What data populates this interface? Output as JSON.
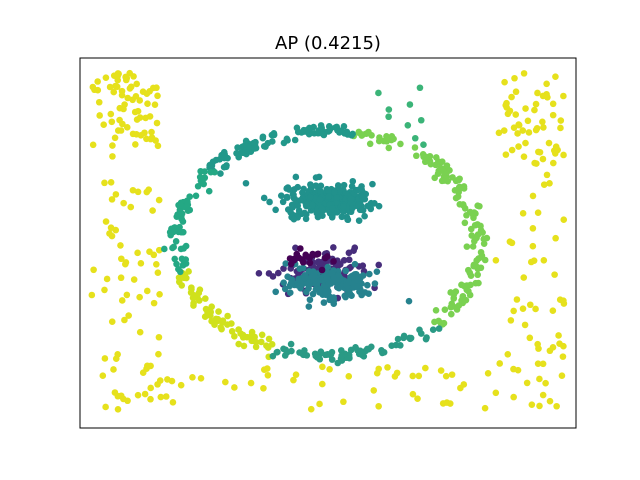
{
  "chart_data": {
    "type": "scatter",
    "title": "AP (0.4215)",
    "xlabel": "",
    "ylabel": "",
    "xlim": [
      -1.05,
      1.05
    ],
    "ylim": [
      -1.05,
      1.05
    ],
    "show_ticks": false,
    "grid": false,
    "legend": "none",
    "colormap": "viridis",
    "point_radius": 3.3,
    "clusters": [
      {
        "name": "outer-scatter-top-left",
        "shape": "uniform_box",
        "x_range": [
          -1.0,
          -0.72
        ],
        "y_range": [
          0.55,
          0.98
        ],
        "count": 70,
        "color": "#e6e11c"
      },
      {
        "name": "outer-scatter-top-right",
        "shape": "uniform_box",
        "x_range": [
          0.72,
          1.0
        ],
        "y_range": [
          0.45,
          0.98
        ],
        "count": 55,
        "color": "#e6e11c"
      },
      {
        "name": "outer-scatter-left",
        "shape": "uniform_box",
        "x_range": [
          -1.0,
          -0.7
        ],
        "y_range": [
          -0.95,
          0.5
        ],
        "count": 70,
        "color": "#e6e11c"
      },
      {
        "name": "outer-scatter-right",
        "shape": "uniform_box",
        "x_range": [
          0.7,
          1.0
        ],
        "y_range": [
          -0.95,
          0.4
        ],
        "count": 55,
        "color": "#e6e11c"
      },
      {
        "name": "outer-scatter-bottom",
        "shape": "uniform_box",
        "x_range": [
          -0.7,
          0.7
        ],
        "y_range": [
          -0.95,
          -0.7
        ],
        "count": 45,
        "color": "#e6e11c"
      },
      {
        "name": "outer-scatter-top-green",
        "shape": "uniform_box",
        "x_range": [
          0.18,
          0.45
        ],
        "y_range": [
          0.55,
          0.9
        ],
        "count": 9,
        "color": "#3bb478"
      },
      {
        "name": "ring-arc-right-green",
        "shape": "ring",
        "radius": 0.64,
        "noise": 0.02,
        "theta_range": [
          -45,
          80
        ],
        "count": 140,
        "color": "#7ad151"
      },
      {
        "name": "ring-arc-bottom-left-yellow",
        "shape": "ring",
        "radius": 0.64,
        "noise": 0.02,
        "theta_range": [
          195,
          250
        ],
        "count": 70,
        "color": "#d0e11c"
      },
      {
        "name": "ring-arc-top-teal",
        "shape": "ring",
        "radius": 0.64,
        "noise": 0.02,
        "theta_range": [
          80,
          140
        ],
        "count": 90,
        "color": "#22988a"
      },
      {
        "name": "ring-arc-left-teal",
        "shape": "ring",
        "radius": 0.64,
        "noise": 0.02,
        "theta_range": [
          140,
          195
        ],
        "count": 60,
        "color": "#24a884"
      },
      {
        "name": "ring-arc-bottom-teal",
        "shape": "ring",
        "radius": 0.64,
        "noise": 0.02,
        "theta_range": [
          250,
          315
        ],
        "count": 70,
        "color": "#2a9a85"
      },
      {
        "name": "inner-blob-upper",
        "shape": "gaussian",
        "cx": 0.0,
        "cy": 0.24,
        "sx": 0.09,
        "sy": 0.045,
        "count": 300,
        "color": "#21918c"
      },
      {
        "name": "inner-blob-lower-purple",
        "shape": "gaussian",
        "cx": -0.03,
        "cy": -0.16,
        "sx": 0.1,
        "sy": 0.06,
        "count": 110,
        "color": "#472d7b"
      },
      {
        "name": "inner-blob-lower-teal",
        "shape": "gaussian",
        "cx": 0.0,
        "cy": -0.22,
        "sx": 0.1,
        "sy": 0.045,
        "count": 170,
        "color": "#26828e"
      },
      {
        "name": "inner-blob-lower-deep",
        "shape": "gaussian",
        "cx": -0.08,
        "cy": -0.08,
        "sx": 0.05,
        "sy": 0.03,
        "count": 22,
        "color": "#440154"
      }
    ]
  }
}
